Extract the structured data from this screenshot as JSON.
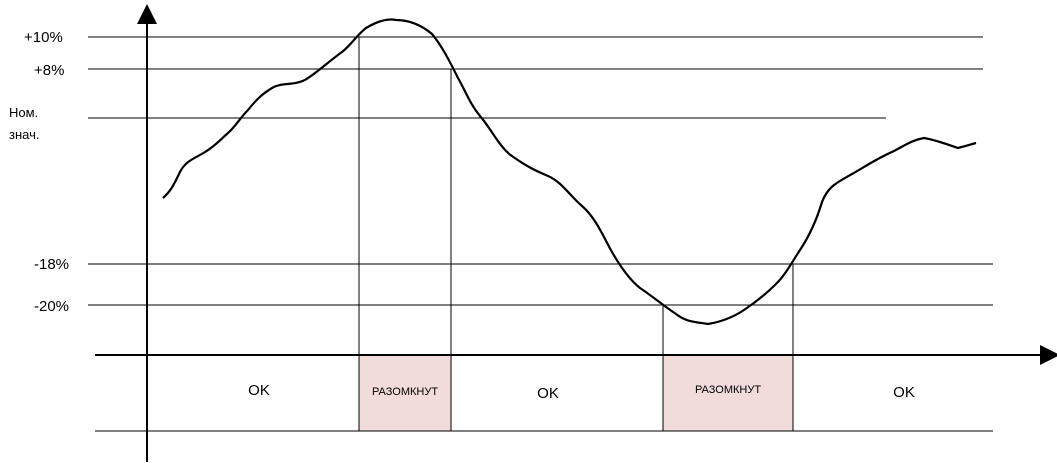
{
  "levels": [
    {
      "id": "plus10",
      "label": "+10%"
    },
    {
      "id": "plus8",
      "label": "+8%"
    },
    {
      "id": "nominal",
      "label_line1": "Ном.",
      "label_line2": "знач."
    },
    {
      "id": "minus18",
      "label": "-18%"
    },
    {
      "id": "minus20",
      "label": "-20%"
    }
  ],
  "states": [
    {
      "label": "OK",
      "open": false
    },
    {
      "label": "РАЗОМКНУТ",
      "open": true
    },
    {
      "label": "OK",
      "open": false
    },
    {
      "label": "РАЗОМКНУТ",
      "open": true
    },
    {
      "label": "OK",
      "open": false
    }
  ],
  "colors": {
    "line": "#000000",
    "open_fill": "#f2dcdb"
  }
}
